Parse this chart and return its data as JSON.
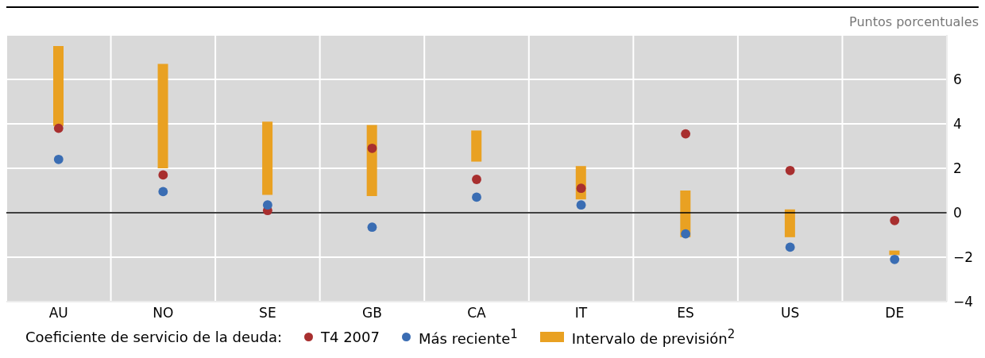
{
  "chart_data": {
    "type": "scatter",
    "ylabel": "Puntos porcentuales",
    "legend_title": "Coeficiente de servicio de la deuda:",
    "categories": [
      "AU",
      "NO",
      "SE",
      "GB",
      "CA",
      "IT",
      "ES",
      "US",
      "DE"
    ],
    "series": [
      {
        "name": "T4 2007",
        "color": "#a82f2f",
        "values": [
          3.8,
          1.7,
          0.1,
          2.9,
          1.5,
          1.1,
          3.55,
          1.9,
          -0.35
        ]
      },
      {
        "name": "Más reciente$^{1}$",
        "color": "#3a6db3",
        "values": [
          2.4,
          0.95,
          0.35,
          -0.65,
          0.7,
          0.35,
          -0.95,
          -1.55,
          -2.1
        ]
      },
      {
        "type": "bar",
        "name": "Intervalo de previsión$^{2}$",
        "color": "#e9a122",
        "base": [
          3.9,
          2.0,
          0.8,
          0.75,
          2.3,
          0.6,
          -1.1,
          -1.1,
          -1.9
        ],
        "values": [
          3.6,
          4.7,
          3.3,
          3.2,
          1.4,
          1.5,
          2.1,
          1.25,
          0.2
        ]
      }
    ],
    "ylim": [
      -4,
      8
    ],
    "yticks": [
      -4,
      -2,
      0,
      2,
      4,
      6
    ],
    "grid": true,
    "legend": "bottom",
    "marker": "circle",
    "ref_lines": [
      {
        "axis": "y",
        "value": 0,
        "color": "#000000"
      }
    ]
  }
}
